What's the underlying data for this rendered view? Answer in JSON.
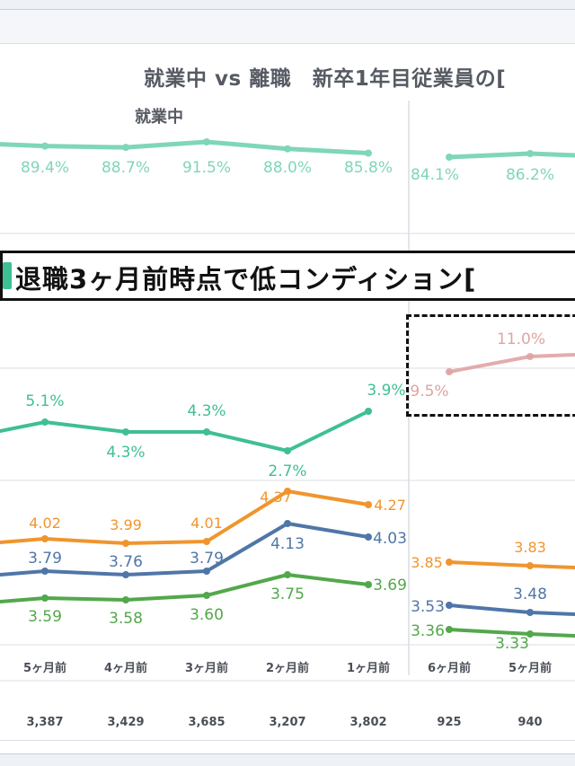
{
  "title": "就業中 vs 離職　新卒1年目従業員の",
  "title_cut": "[",
  "panel_left_label": "就業中",
  "callout_text": "退職3ヶ月前時点で低コンディション",
  "callout_cut": "[",
  "colors": {
    "teal": "#3fbf94",
    "teal_light": "#7fd6b9",
    "orange": "#f0952d",
    "blue": "#4f76a8",
    "green": "#52a84a",
    "pink": "#e0a3a3",
    "grid": "#d9dde3",
    "callout_accent": "#3fbf94"
  },
  "chart_data": [
    {
      "type": "line",
      "panel": "就業中",
      "title": "就業中",
      "categories": [
        "5ヶ月前",
        "4ヶ月前",
        "3ヶ月前",
        "2ヶ月前",
        "1ヶ月前"
      ],
      "series": [
        {
          "name": "top_rate",
          "values_label": [
            "89.4%",
            "88.7%",
            "91.5%",
            "88.0%",
            "85.8%"
          ],
          "values": [
            89.4,
            88.7,
            91.5,
            88.0,
            85.8
          ]
        },
        {
          "name": "low_condition_rate",
          "values_label": [
            "5.1%",
            "4.3%",
            "4.3%",
            "2.7%",
            "3.9%"
          ],
          "values": [
            5.1,
            4.3,
            4.3,
            2.7,
            3.9
          ]
        },
        {
          "name": "orange_score",
          "values_label": [
            "4.02",
            "3.99",
            "4.01",
            "4.37",
            "4.27"
          ],
          "values": [
            4.02,
            3.99,
            4.01,
            4.37,
            4.27
          ]
        },
        {
          "name": "blue_score",
          "values_label": [
            "3.79",
            "3.76",
            "3.79",
            "4.13",
            "4.03"
          ],
          "values": [
            3.79,
            3.76,
            3.79,
            4.13,
            4.03
          ]
        },
        {
          "name": "green_score",
          "values_label": [
            "3.59",
            "3.58",
            "3.60",
            "3.75",
            "3.69"
          ],
          "values": [
            3.59,
            3.58,
            3.6,
            3.75,
            3.69
          ]
        }
      ],
      "counts": [
        "3,387",
        "3,429",
        "3,685",
        "3,207",
        "3,802"
      ]
    },
    {
      "type": "line",
      "panel": "離職",
      "title": "",
      "categories": [
        "6ヶ月前",
        "5ヶ月前"
      ],
      "series": [
        {
          "name": "top_rate",
          "values_label": [
            "84.1%",
            "86.2%"
          ],
          "values": [
            84.1,
            86.2
          ]
        },
        {
          "name": "low_condition_rate",
          "values_label": [
            "9.5%",
            "11.0%"
          ],
          "values": [
            9.5,
            11.0
          ]
        },
        {
          "name": "orange_score",
          "values_label": [
            "3.85",
            "3.83"
          ],
          "values": [
            3.85,
            3.83
          ]
        },
        {
          "name": "blue_score",
          "values_label": [
            "3.53",
            "3.48"
          ],
          "values": [
            3.53,
            3.48
          ]
        },
        {
          "name": "green_score",
          "values_label": [
            "3.36",
            "3.33"
          ],
          "values": [
            3.36,
            3.33
          ]
        }
      ],
      "counts": [
        "925",
        "940"
      ]
    }
  ]
}
